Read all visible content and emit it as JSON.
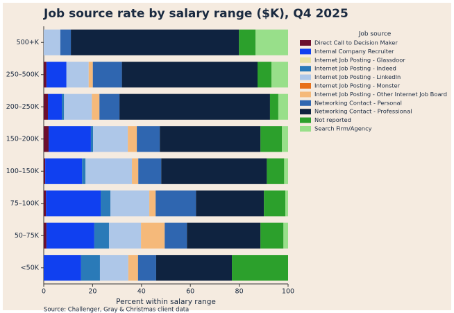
{
  "chart_data": {
    "type": "stacked_barh",
    "title": "Job source rate by salary range ($K), Q4 2025",
    "x_label": "Percent within salary range",
    "source": "Source: Challenger, Gray & Christmas client data",
    "legend_title": "Job source",
    "legend_position": "upper right outside",
    "categories": [
      "500+K",
      "250–500K",
      "200–250K",
      "150–200K",
      "100–150K",
      "75–100K",
      "50–75K",
      "<50K"
    ],
    "series": [
      {
        "name": "Direct Call to Decision Maker",
        "color": "#6b0f2e",
        "values": [
          0,
          1.1,
          1.7,
          2.0,
          0.6,
          0.9,
          1.1,
          0
        ]
      },
      {
        "name": "Internal Company Recruiter",
        "color": "#1040f0",
        "values": [
          0,
          8.2,
          5.7,
          17.3,
          15.1,
          22.4,
          19.6,
          15.3
        ]
      },
      {
        "name": "Internet Job Posting - Glassdoor",
        "color": "#e8e2a4",
        "values": [
          0,
          0,
          0,
          0,
          0,
          0,
          0,
          0
        ]
      },
      {
        "name": "Internet Job Posting - Indeed",
        "color": "#2a7ab8",
        "values": [
          0,
          0,
          0.9,
          0.9,
          1.4,
          4.0,
          6.0,
          7.7
        ]
      },
      {
        "name": "Internet Job Posting - LinkedIn",
        "color": "#aec7e8",
        "values": [
          6.8,
          9.1,
          11.4,
          14.2,
          19.0,
          15.9,
          13.1,
          11.6
        ]
      },
      {
        "name": "Internet Job Posting - Monster",
        "color": "#e8701a",
        "values": [
          0,
          0,
          0,
          0,
          0,
          0,
          0,
          0
        ]
      },
      {
        "name": "Internet Job Posting - Other Internet Job Board",
        "color": "#f5b97a",
        "values": [
          0,
          1.7,
          3.1,
          3.7,
          2.6,
          2.6,
          9.7,
          4.0
        ]
      },
      {
        "name": "Networking Contact - Personal",
        "color": "#2f66b0",
        "values": [
          4.3,
          11.9,
          8.2,
          9.4,
          9.4,
          16.5,
          9.1,
          7.4
        ]
      },
      {
        "name": "Networking Contact - Professional",
        "color": "#0f2340",
        "values": [
          68.8,
          55.5,
          61.6,
          41.2,
          43.2,
          27.8,
          30.1,
          31.0
        ]
      },
      {
        "name": "Not reported",
        "color": "#2ca02c",
        "values": [
          6.8,
          5.7,
          3.4,
          8.8,
          7.1,
          8.8,
          9.4,
          23.0
        ]
      },
      {
        "name": "Search Firm/Agency",
        "color": "#98df8a",
        "values": [
          13.3,
          6.8,
          4.0,
          2.5,
          1.6,
          1.1,
          1.9,
          0
        ]
      }
    ],
    "xlim": [
      0,
      100
    ],
    "xticks": [
      0,
      20,
      40,
      60,
      80,
      100
    ]
  }
}
